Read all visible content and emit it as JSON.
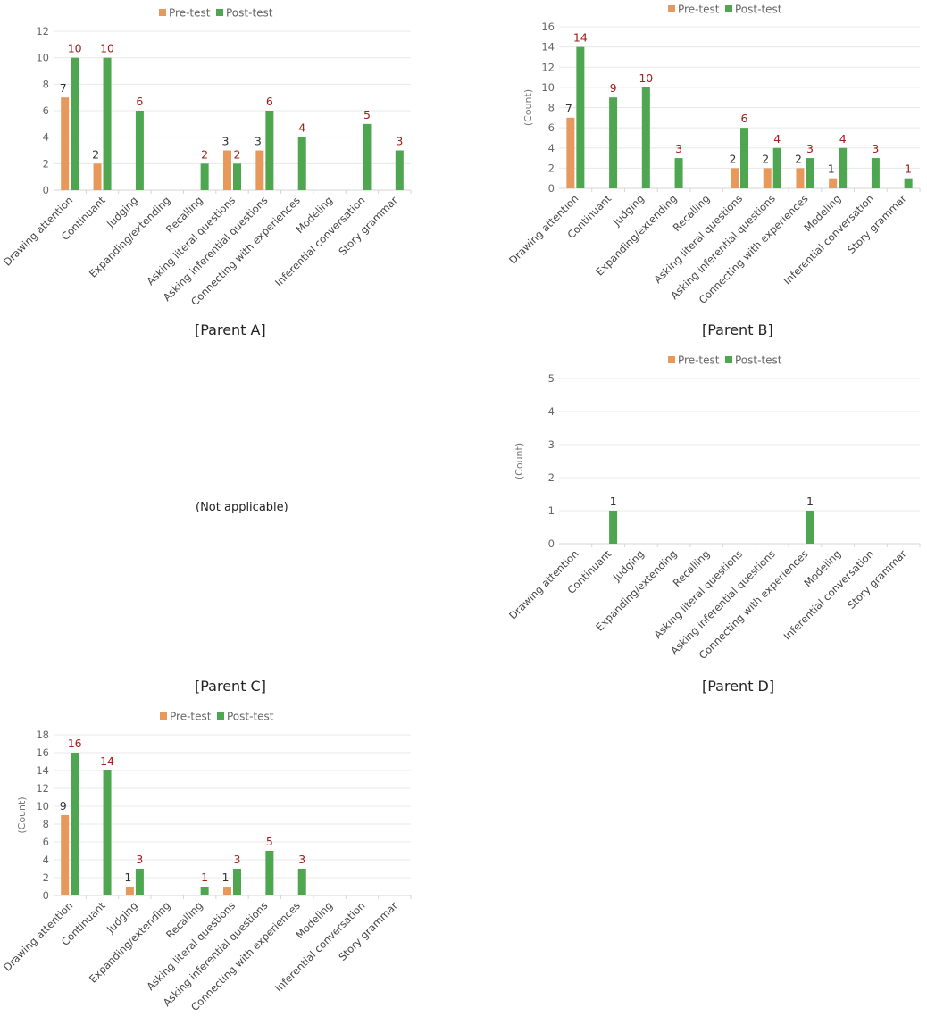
{
  "colors": {
    "pre": "#e6995a",
    "post": "#4ea651",
    "label_pre": "#333333",
    "label_post": "#a0201a",
    "grid": "#e8e8e8",
    "axis": "#d6d6d6"
  },
  "chart_data": [
    {
      "panel": "A",
      "type": "bar",
      "caption": "[Parent  A]",
      "ylabel": "",
      "ylim": [
        0,
        12
      ],
      "yticks": [
        0,
        2,
        4,
        6,
        8,
        10,
        12
      ],
      "legend": "top-center",
      "categories": [
        "Drawing attention",
        "Continuant",
        "Judging",
        "Expanding/extending",
        "Recalling",
        "Asking literal questions",
        "Asking inferential questions",
        "Connecting with experiences",
        "Modeling",
        "Inferential conversation",
        "Story grammar"
      ],
      "series": [
        {
          "name": "Pre-test",
          "values": [
            7,
            2,
            0,
            0,
            0,
            3,
            3,
            0,
            0,
            0,
            0
          ]
        },
        {
          "name": "Post-test",
          "values": [
            10,
            10,
            6,
            0,
            2,
            2,
            6,
            4,
            0,
            5,
            3
          ]
        }
      ]
    },
    {
      "panel": "B",
      "type": "bar",
      "caption": "[Parent  B]",
      "ylabel": "(Count)",
      "ylim": [
        0,
        16
      ],
      "yticks": [
        0,
        2,
        4,
        6,
        8,
        10,
        12,
        14,
        16
      ],
      "legend": "top-center",
      "categories": [
        "Drawing attention",
        "Continuant",
        "Judging",
        "Expanding/extending",
        "Recalling",
        "Asking literal questions",
        "Asking inferential questions",
        "Connecting with experiences",
        "Modeling",
        "Inferential conversation",
        "Story grammar"
      ],
      "series": [
        {
          "name": "Pre-test",
          "values": [
            7,
            0,
            0,
            0,
            0,
            2,
            2,
            2,
            1,
            0,
            0
          ]
        },
        {
          "name": "Post-test",
          "values": [
            14,
            9,
            10,
            3,
            0,
            6,
            4,
            3,
            4,
            3,
            1
          ]
        }
      ]
    },
    {
      "panel": "C",
      "type": "bar",
      "caption": "[Parent  C]",
      "not_applicable": "(Not  applicable)"
    },
    {
      "panel": "D",
      "type": "bar",
      "caption": "[Parent  D]",
      "ylabel": "(Count)",
      "ylim": [
        0,
        5
      ],
      "yticks": [
        0,
        1,
        2,
        3,
        4,
        5
      ],
      "legend": "top-center",
      "categories": [
        "Drawing attention",
        "Continuant",
        "Judging",
        "Expanding/extending",
        "Recalling",
        "Asking literal questions",
        "Asking inferential questions",
        "Connecting with experiences",
        "Modeling",
        "Inferential conversation",
        "Story grammar"
      ],
      "series": [
        {
          "name": "Pre-test",
          "values": [
            0,
            0,
            0,
            0,
            0,
            0,
            0,
            0,
            0,
            0,
            0
          ]
        },
        {
          "name": "Post-test",
          "values": [
            0,
            1,
            0,
            0,
            0,
            0,
            0,
            1,
            0,
            0,
            0
          ]
        }
      ]
    },
    {
      "panel": "E",
      "type": "bar",
      "caption": "",
      "ylabel": "(Count)",
      "ylim": [
        0,
        18
      ],
      "yticks": [
        0,
        2,
        4,
        6,
        8,
        10,
        12,
        14,
        16,
        18
      ],
      "legend": "top-center",
      "categories": [
        "Drawing attention",
        "Continuant",
        "Judging",
        "Expanding/extending",
        "Recalling",
        "Asking literal questions",
        "Asking inferential questions",
        "Connecting with experiences",
        "Modeling",
        "Inferential conversation",
        "Story grammar"
      ],
      "series": [
        {
          "name": "Pre-test",
          "values": [
            9,
            0,
            1,
            0,
            0,
            1,
            0,
            0,
            0,
            0,
            0
          ]
        },
        {
          "name": "Post-test",
          "values": [
            16,
            14,
            3,
            0,
            1,
            3,
            5,
            3,
            0,
            0,
            0
          ]
        }
      ]
    }
  ]
}
